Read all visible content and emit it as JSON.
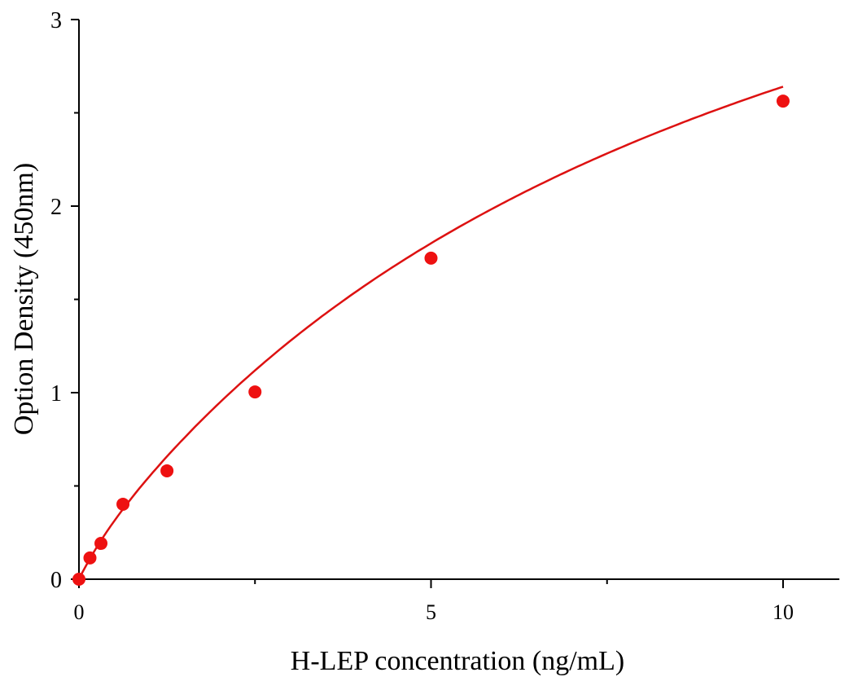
{
  "chart_data": {
    "type": "scatter",
    "title": "",
    "xlabel": "H-LEP concentration (ng/mL)",
    "ylabel": "Option Density (450nm)",
    "xlim": [
      0,
      10.8
    ],
    "ylim": [
      0,
      3
    ],
    "x_ticks": [
      "0",
      "5",
      "10"
    ],
    "y_ticks": [
      "0",
      "1",
      "2",
      "3"
    ],
    "grid": false,
    "fit_curve": true,
    "marker_color": "#ee1111",
    "curve_color": "#dd1111",
    "series": [
      {
        "x": [
          0,
          0.156,
          0.3125,
          0.625,
          1.25,
          2.5,
          5,
          10
        ],
        "y": [
          0,
          0.114,
          0.192,
          0.402,
          0.581,
          1.004,
          1.721,
          2.563
        ]
      }
    ]
  }
}
